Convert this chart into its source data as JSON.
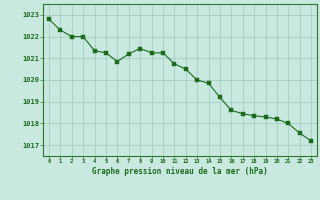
{
  "hours": [
    0,
    1,
    2,
    3,
    4,
    5,
    6,
    7,
    8,
    9,
    10,
    11,
    12,
    13,
    14,
    15,
    16,
    17,
    18,
    19,
    20,
    21,
    22,
    23
  ],
  "pressure": [
    1022.8,
    1022.3,
    1022.0,
    1022.0,
    1021.35,
    1021.25,
    1020.85,
    1021.2,
    1021.45,
    1021.25,
    1021.25,
    1020.75,
    1020.5,
    1020.0,
    1019.85,
    1019.2,
    1018.6,
    1018.45,
    1018.35,
    1018.3,
    1018.2,
    1018.0,
    1017.55,
    1017.2
  ],
  "ylim": [
    1016.5,
    1023.5
  ],
  "yticks": [
    1017,
    1018,
    1019,
    1020,
    1021,
    1022,
    1023
  ],
  "xlim": [
    -0.5,
    23.5
  ],
  "xticks": [
    0,
    1,
    2,
    3,
    4,
    5,
    6,
    7,
    8,
    9,
    10,
    11,
    12,
    13,
    14,
    15,
    16,
    17,
    18,
    19,
    20,
    21,
    22,
    23
  ],
  "line_color": "#1a6b1a",
  "marker_color": "#1a6b1a",
  "bg_color": "#c8e8e0",
  "grid_color": "#a0c8c0",
  "xlabel": "Graphe pression niveau de la mer (hPa)",
  "xlabel_color": "#1a6b1a",
  "tick_color": "#1a6b1a",
  "border_color": "#2a7a2a"
}
